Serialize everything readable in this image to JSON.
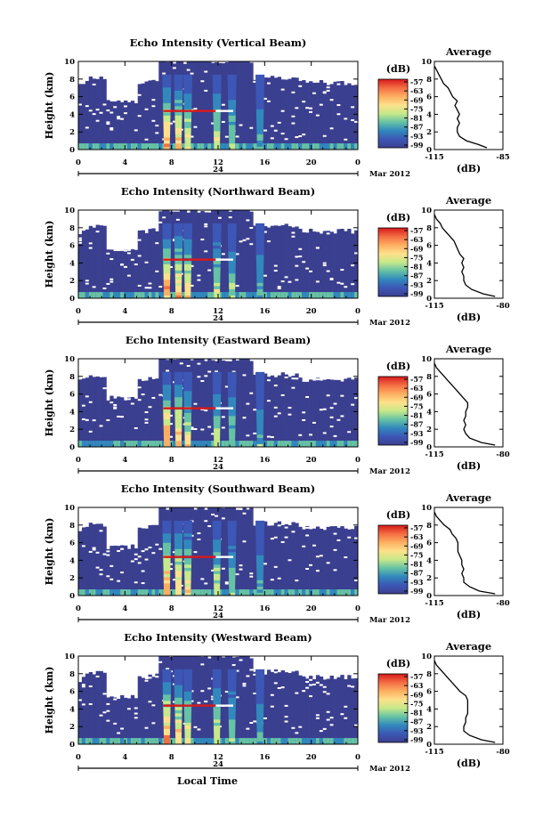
{
  "chart_data": [
    {
      "type": "heatmap",
      "title": "Echo Intensity (Vertical Beam)",
      "ylabel": "Height (km)",
      "x_ticks": [
        "0",
        "4",
        "8",
        "12",
        "16",
        "20",
        "0"
      ],
      "y_ticks": [
        "0",
        "2",
        "4",
        "6",
        "8",
        "10"
      ],
      "xlim": [
        0,
        24
      ],
      "ylim": [
        0,
        10
      ],
      "date_marker": "24",
      "month_label": "Mar 2012",
      "colorbar": {
        "unit": "(dB)",
        "ticks": [
          "-57",
          "-63",
          "-69",
          "-75",
          "-81",
          "-87",
          "-93",
          "-99"
        ]
      },
      "average_profile": {
        "title": "Average",
        "xlabel": "(dB)",
        "x_ticks": [
          "-115",
          "-85"
        ],
        "xlim": [
          -115,
          -85
        ],
        "y_ticks": [
          "0",
          "2",
          "4",
          "6",
          "8",
          "10"
        ],
        "points": [
          [
            -92,
            0.2
          ],
          [
            -96,
            0.6
          ],
          [
            -101,
            1.0
          ],
          [
            -104,
            1.5
          ],
          [
            -105,
            2.0
          ],
          [
            -105,
            2.5
          ],
          [
            -104,
            3.0
          ],
          [
            -105,
            3.5
          ],
          [
            -104,
            4.0
          ],
          [
            -105,
            4.5
          ],
          [
            -106,
            5.0
          ],
          [
            -105,
            5.5
          ],
          [
            -107,
            6.0
          ],
          [
            -108,
            6.5
          ],
          [
            -109,
            7.0
          ],
          [
            -111,
            7.5
          ],
          [
            -112,
            8.0
          ],
          [
            -113,
            8.5
          ],
          [
            -114,
            9.0
          ],
          [
            -115,
            9.5
          ]
        ]
      }
    },
    {
      "type": "heatmap",
      "title": "Echo Intensity (Northward Beam)",
      "ylabel": "Height (km)",
      "x_ticks": [
        "0",
        "4",
        "8",
        "12",
        "16",
        "20",
        "0"
      ],
      "y_ticks": [
        "0",
        "2",
        "4",
        "6",
        "8",
        "10"
      ],
      "xlim": [
        0,
        24
      ],
      "ylim": [
        0,
        10
      ],
      "date_marker": "24",
      "month_label": "Mar 2012",
      "colorbar": {
        "unit": "(dB)",
        "ticks": [
          "-57",
          "-63",
          "-69",
          "-75",
          "-81",
          "-87",
          "-93",
          "-99"
        ]
      },
      "average_profile": {
        "title": "Average",
        "xlabel": "(dB)",
        "x_ticks": [
          "-115",
          "-80"
        ],
        "xlim": [
          -115,
          -80
        ],
        "y_ticks": [
          "0",
          "2",
          "4",
          "6",
          "8",
          "10"
        ],
        "points": [
          [
            -84,
            0.2
          ],
          [
            -90,
            0.5
          ],
          [
            -96,
            1.0
          ],
          [
            -99,
            1.5
          ],
          [
            -100,
            2.0
          ],
          [
            -100,
            2.5
          ],
          [
            -101,
            3.0
          ],
          [
            -100,
            3.5
          ],
          [
            -101,
            4.0
          ],
          [
            -100,
            4.5
          ],
          [
            -102,
            5.0
          ],
          [
            -103,
            5.5
          ],
          [
            -104,
            6.0
          ],
          [
            -105,
            6.5
          ],
          [
            -107,
            7.0
          ],
          [
            -109,
            7.5
          ],
          [
            -111,
            8.0
          ],
          [
            -112,
            8.5
          ],
          [
            -114,
            9.0
          ],
          [
            -115,
            9.5
          ]
        ]
      }
    },
    {
      "type": "heatmap",
      "title": "Echo Intensity (Eastward Beam)",
      "ylabel": "Height (km)",
      "x_ticks": [
        "0",
        "4",
        "8",
        "12",
        "16",
        "20",
        "0"
      ],
      "y_ticks": [
        "0",
        "2",
        "4",
        "6",
        "8",
        "10"
      ],
      "xlim": [
        0,
        24
      ],
      "ylim": [
        0,
        10
      ],
      "date_marker": "24",
      "month_label": "Mar 2012",
      "colorbar": {
        "unit": "(dB)",
        "ticks": [
          "-57",
          "-63",
          "-69",
          "-75",
          "-81",
          "-87",
          "-93",
          "-99"
        ]
      },
      "average_profile": {
        "title": "Average",
        "xlabel": "(dB)",
        "x_ticks": [
          "-115",
          "-80"
        ],
        "xlim": [
          -115,
          -80
        ],
        "y_ticks": [
          "0",
          "2",
          "4",
          "6",
          "8",
          "10"
        ],
        "points": [
          [
            -84,
            0.2
          ],
          [
            -91,
            0.5
          ],
          [
            -97,
            1.0
          ],
          [
            -99,
            1.5
          ],
          [
            -100,
            2.0
          ],
          [
            -99,
            2.5
          ],
          [
            -100,
            3.0
          ],
          [
            -99,
            3.5
          ],
          [
            -99,
            4.0
          ],
          [
            -98,
            4.5
          ],
          [
            -98,
            5.0
          ],
          [
            -100,
            5.5
          ],
          [
            -102,
            6.0
          ],
          [
            -104,
            6.5
          ],
          [
            -106,
            7.0
          ],
          [
            -108,
            7.5
          ],
          [
            -110,
            8.0
          ],
          [
            -112,
            8.5
          ],
          [
            -114,
            9.0
          ],
          [
            -115,
            9.5
          ]
        ]
      }
    },
    {
      "type": "heatmap",
      "title": "Echo Intensity (Southward Beam)",
      "ylabel": "Height (km)",
      "x_ticks": [
        "0",
        "4",
        "8",
        "12",
        "16",
        "20",
        "0"
      ],
      "y_ticks": [
        "0",
        "2",
        "4",
        "6",
        "8",
        "10"
      ],
      "xlim": [
        0,
        24
      ],
      "ylim": [
        0,
        10
      ],
      "date_marker": "24",
      "month_label": "Mar 2012",
      "colorbar": {
        "unit": "(dB)",
        "ticks": [
          "-57",
          "-63",
          "-69",
          "-75",
          "-81",
          "-87",
          "-93",
          "-99"
        ]
      },
      "average_profile": {
        "title": "Average",
        "xlabel": "(dB)",
        "x_ticks": [
          "-115",
          "-80"
        ],
        "xlim": [
          -115,
          -80
        ],
        "y_ticks": [
          "0",
          "2",
          "4",
          "6",
          "8",
          "10"
        ],
        "points": [
          [
            -84,
            0.2
          ],
          [
            -92,
            0.5
          ],
          [
            -97,
            1.0
          ],
          [
            -100,
            1.5
          ],
          [
            -100,
            2.0
          ],
          [
            -101,
            2.5
          ],
          [
            -100,
            3.0
          ],
          [
            -101,
            3.5
          ],
          [
            -101,
            4.0
          ],
          [
            -102,
            4.5
          ],
          [
            -103,
            5.0
          ],
          [
            -103,
            5.5
          ],
          [
            -103,
            6.0
          ],
          [
            -104,
            6.5
          ],
          [
            -106,
            7.0
          ],
          [
            -107,
            7.5
          ],
          [
            -110,
            8.0
          ],
          [
            -112,
            8.5
          ],
          [
            -114,
            9.0
          ],
          [
            -115,
            9.5
          ]
        ]
      }
    },
    {
      "type": "heatmap",
      "title": "Echo Intensity (Westward Beam)",
      "ylabel": "Height (km)",
      "xlabel": "Local Time",
      "x_ticks": [
        "0",
        "4",
        "8",
        "12",
        "16",
        "20",
        "0"
      ],
      "y_ticks": [
        "0",
        "2",
        "4",
        "6",
        "8",
        "10"
      ],
      "xlim": [
        0,
        24
      ],
      "ylim": [
        0,
        10
      ],
      "date_marker": "24",
      "month_label": "Mar 2012",
      "colorbar": {
        "unit": "(dB)",
        "ticks": [
          "-57",
          "-63",
          "-69",
          "-75",
          "-81",
          "-87",
          "-93",
          "-99"
        ]
      },
      "average_profile": {
        "title": "Average",
        "xlabel": "(dB)",
        "x_ticks": [
          "-115",
          "-80"
        ],
        "xlim": [
          -115,
          -80
        ],
        "y_ticks": [
          "0",
          "2",
          "4",
          "6",
          "8",
          "10"
        ],
        "points": [
          [
            -84,
            0.2
          ],
          [
            -91,
            0.5
          ],
          [
            -97,
            1.0
          ],
          [
            -100,
            1.5
          ],
          [
            -100,
            2.0
          ],
          [
            -99,
            2.5
          ],
          [
            -99,
            3.0
          ],
          [
            -98,
            3.5
          ],
          [
            -98,
            4.0
          ],
          [
            -98,
            4.5
          ],
          [
            -98,
            5.0
          ],
          [
            -99,
            5.5
          ],
          [
            -102,
            6.0
          ],
          [
            -104,
            6.5
          ],
          [
            -106,
            7.0
          ],
          [
            -108,
            7.5
          ],
          [
            -110,
            8.0
          ],
          [
            -112,
            8.5
          ],
          [
            -114,
            9.0
          ],
          [
            -115,
            9.5
          ]
        ]
      }
    }
  ]
}
